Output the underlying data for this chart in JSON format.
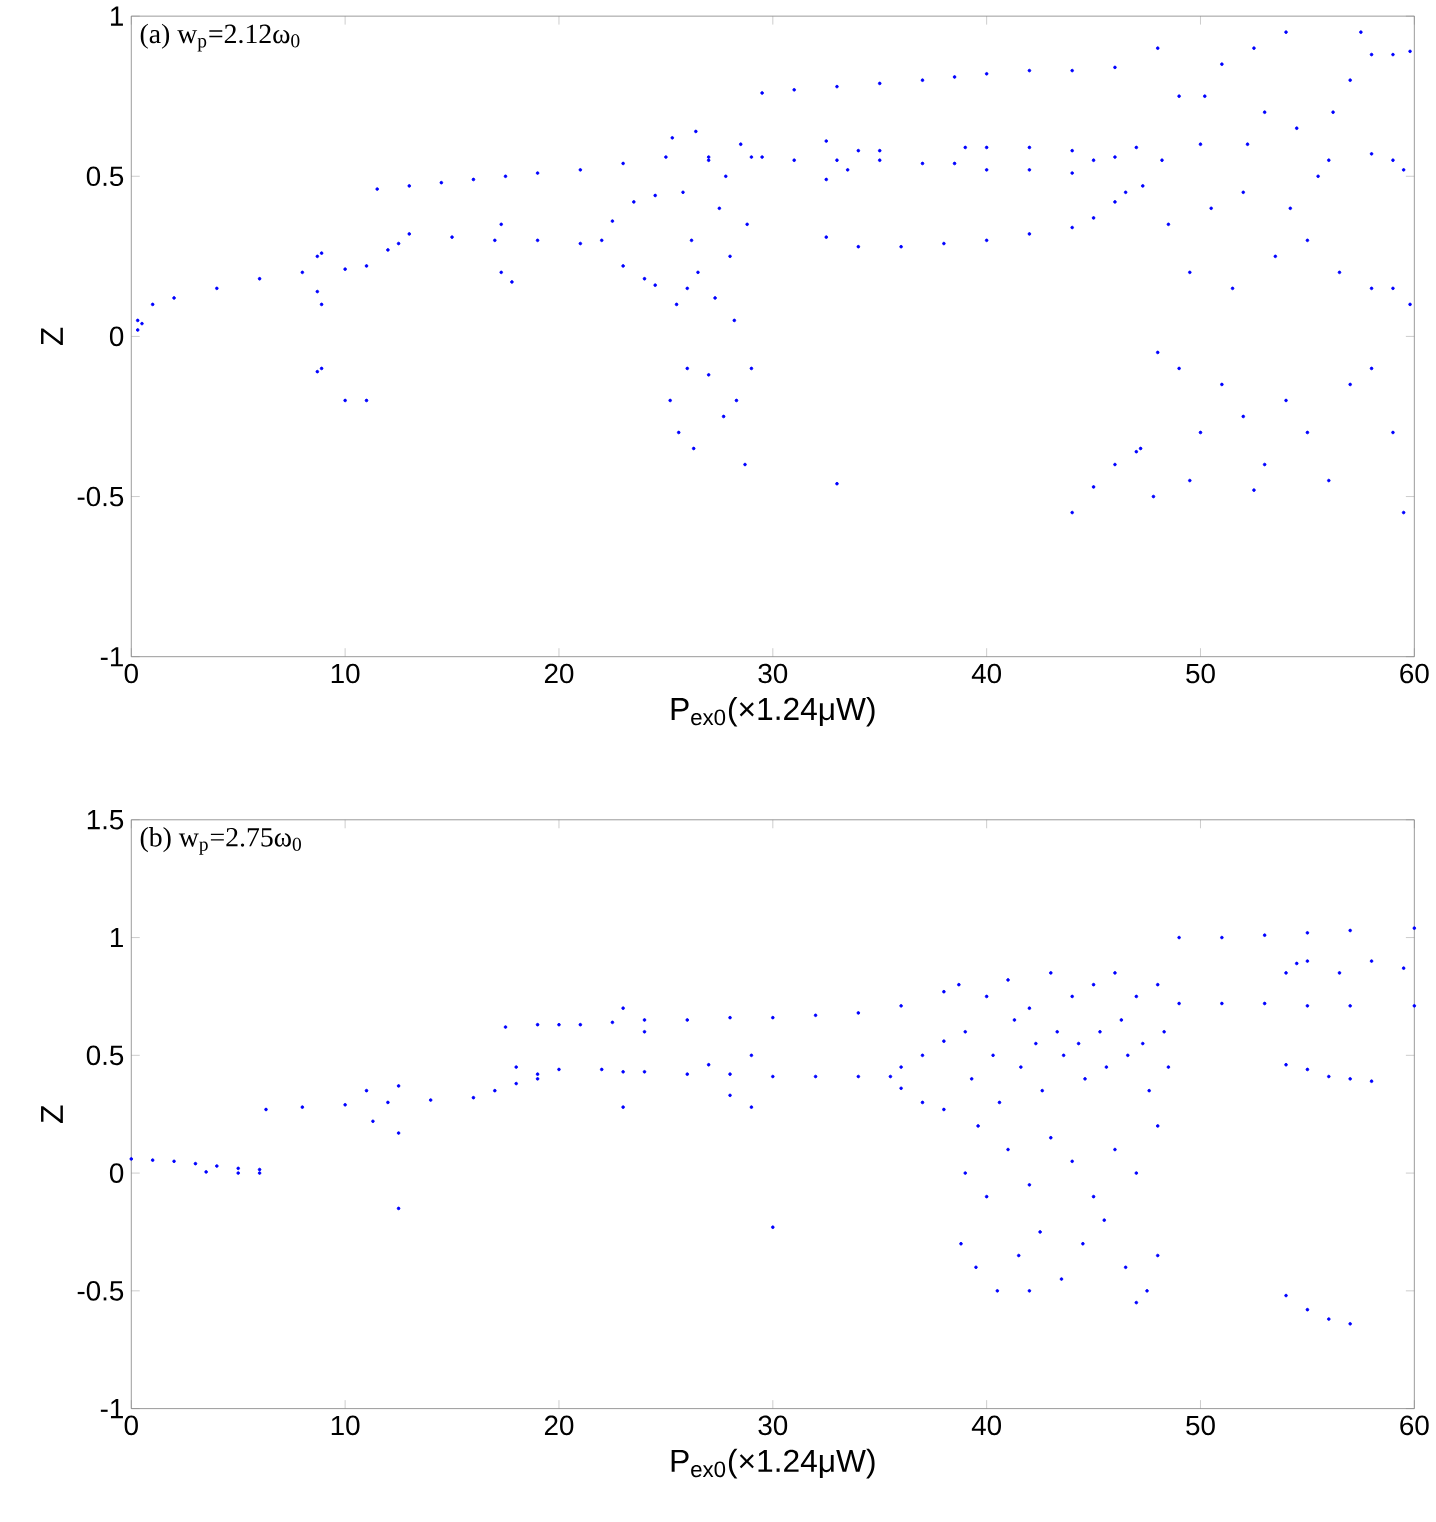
{
  "chart_data": [
    {
      "type": "scatter",
      "xlabel": "P$_{ex0}$(×1.24μW)",
      "ylabel": "Z",
      "annotations": [
        "(a) w$_{p}$=2.12ω$_{0}$"
      ],
      "marker": "circle",
      "xlim": [
        0,
        60
      ],
      "ylim": [
        -1,
        1
      ],
      "xticks": [
        0,
        10,
        20,
        30,
        40,
        50,
        60
      ],
      "yticks": [
        -1,
        -0.5,
        0,
        0.5,
        1
      ],
      "series": [
        {
          "color": "#0000ff",
          "x": [
            0.3,
            0.3,
            0.5,
            1,
            2,
            4,
            6,
            8,
            10,
            11,
            8.7,
            8.9,
            8.7,
            8.9,
            8.7,
            8.9,
            10,
            11,
            11.5,
            13,
            14.5,
            16,
            17.5,
            19,
            21,
            23,
            25,
            27,
            29,
            12,
            12.5,
            13,
            15,
            17,
            19,
            21,
            22,
            22.5,
            23.5,
            24.5,
            23,
            24,
            24.5,
            17.3,
            17.8,
            17.3,
            25.3,
            25.8,
            26.2,
            26.5,
            27,
            27.5,
            28,
            28.5,
            28.8,
            25.5,
            26,
            27.3,
            28.2,
            26.4,
            27.8,
            25.2,
            25.6,
            26,
            26.3,
            27,
            27.7,
            28.3,
            28.7,
            29,
            29.5,
            31,
            33,
            35,
            37,
            38.5,
            40,
            42,
            44,
            46,
            29.5,
            31,
            33,
            35,
            37,
            38.5,
            32.5,
            34,
            35,
            32.5,
            33.5,
            39,
            40,
            42,
            44,
            45,
            46,
            47,
            40,
            42,
            44,
            32.5,
            34,
            36,
            38,
            40,
            42,
            44,
            45,
            46,
            46.5,
            47.3,
            33,
            44,
            45,
            46,
            47,
            47.2,
            48,
            49,
            50,
            51,
            52,
            53,
            54,
            55,
            56,
            57,
            48.5,
            49.5,
            50.5,
            51.5,
            52.5,
            53.5,
            54.5,
            55.5,
            56.5,
            57.5,
            48.2,
            50.2,
            52.2,
            54.2,
            56.2,
            58,
            59,
            59.8,
            58,
            59,
            59.5,
            58,
            59,
            59.8,
            48,
            49,
            50,
            51,
            52,
            53,
            54,
            55,
            56,
            57,
            58,
            59,
            59.5,
            47.8,
            49.5,
            52.5
          ],
          "values": [
            0.05,
            0.02,
            0.04,
            0.1,
            0.12,
            0.15,
            0.18,
            0.2,
            0.21,
            0.22,
            0.25,
            0.26,
            0.14,
            0.1,
            -0.11,
            -0.1,
            -0.2,
            -0.2,
            0.46,
            0.47,
            0.48,
            0.49,
            0.5,
            0.51,
            0.52,
            0.54,
            0.56,
            0.56,
            0.56,
            0.27,
            0.29,
            0.32,
            0.31,
            0.3,
            0.3,
            0.29,
            0.3,
            0.36,
            0.42,
            0.44,
            0.22,
            0.18,
            0.16,
            0.2,
            0.17,
            0.35,
            0.62,
            0.45,
            0.3,
            0.2,
            0.55,
            0.4,
            0.25,
            0.6,
            0.35,
            0.1,
            0.15,
            0.12,
            0.05,
            0.64,
            0.5,
            -0.2,
            -0.3,
            -0.1,
            -0.35,
            -0.12,
            -0.25,
            -0.2,
            -0.4,
            -0.1,
            0.76,
            0.77,
            0.78,
            0.79,
            0.8,
            0.81,
            0.82,
            0.83,
            0.83,
            0.84,
            0.56,
            0.55,
            0.55,
            0.55,
            0.54,
            0.54,
            0.61,
            0.58,
            0.58,
            0.49,
            0.52,
            0.59,
            0.59,
            0.59,
            0.58,
            0.55,
            0.56,
            0.59,
            0.52,
            0.52,
            0.51,
            0.31,
            0.28,
            0.28,
            0.29,
            0.3,
            0.32,
            0.34,
            0.37,
            0.42,
            0.45,
            0.47,
            -0.46,
            -0.55,
            -0.47,
            -0.4,
            -0.36,
            -0.35,
            0.9,
            0.75,
            0.6,
            0.85,
            0.45,
            0.7,
            0.95,
            0.3,
            0.55,
            0.8,
            0.35,
            0.2,
            0.4,
            0.15,
            0.9,
            0.25,
            0.65,
            0.5,
            0.2,
            0.95,
            0.55,
            0.75,
            0.6,
            0.4,
            0.7,
            0.88,
            0.88,
            0.89,
            0.57,
            0.55,
            0.52,
            0.15,
            0.15,
            0.1,
            -0.05,
            -0.1,
            -0.3,
            -0.15,
            -0.25,
            -0.4,
            -0.2,
            -0.3,
            -0.45,
            -0.15,
            -0.1,
            -0.3,
            -0.55,
            -0.5,
            -0.45,
            -0.48
          ]
        }
      ]
    },
    {
      "type": "scatter",
      "xlabel": "P$_{ex0}$(×1.24μW)",
      "ylabel": "Z",
      "annotations": [
        "(b) w$_{p}$=2.75ω$_{0}$"
      ],
      "marker": "circle",
      "xlim": [
        0,
        60
      ],
      "ylim": [
        -1,
        1.5
      ],
      "xticks": [
        0,
        10,
        20,
        30,
        40,
        50,
        60
      ],
      "yticks": [
        -1,
        -0.5,
        0,
        0.5,
        1,
        1.5
      ],
      "series": [
        {
          "color": "#0000ff",
          "x": [
            0,
            1,
            2,
            3,
            4,
            5,
            6,
            3.5,
            5,
            6,
            6.3,
            8,
            10,
            12,
            14,
            16,
            17,
            18,
            19,
            20,
            22,
            23,
            11,
            11.3,
            12.5,
            12.5,
            12.5,
            17.5,
            19,
            20,
            21,
            22.5,
            24,
            26,
            28,
            30,
            32,
            34,
            36,
            38,
            23,
            23,
            24,
            18,
            19,
            24,
            26,
            28,
            30,
            32,
            34,
            35.5,
            36,
            37,
            38,
            36,
            37,
            38,
            28,
            29,
            27,
            29,
            30,
            38.7,
            39,
            39.3,
            39.6,
            40,
            40.3,
            40.6,
            41,
            41.3,
            41.6,
            42,
            42.3,
            42.6,
            43,
            43.3,
            43.6,
            44,
            44.3,
            44.6,
            45,
            45.3,
            45.6,
            46,
            46.3,
            46.6,
            47,
            47.3,
            47.6,
            48,
            48.3,
            48.5,
            39,
            40,
            41,
            42,
            43,
            44,
            45,
            46,
            47,
            48,
            38.8,
            39.5,
            40.5,
            41.5,
            42.5,
            43.5,
            44.5,
            45.5,
            46.5,
            47.5,
            48,
            47,
            42,
            49,
            51,
            53,
            55,
            57,
            60,
            49,
            51,
            53,
            55,
            57,
            60,
            54,
            55,
            56,
            57,
            58,
            54,
            55,
            56,
            57,
            54.5,
            55,
            54,
            56.5,
            58,
            59.5
          ],
          "values": [
            0.06,
            0.055,
            0.05,
            0.04,
            0.03,
            0.02,
            0.015,
            0.005,
            0,
            0,
            0.27,
            0.28,
            0.29,
            0.3,
            0.31,
            0.32,
            0.35,
            0.38,
            0.42,
            0.44,
            0.44,
            0.43,
            0.35,
            0.22,
            0.37,
            0.17,
            -0.15,
            0.62,
            0.63,
            0.63,
            0.63,
            0.64,
            0.65,
            0.65,
            0.66,
            0.66,
            0.67,
            0.68,
            0.71,
            0.77,
            0.28,
            0.7,
            0.6,
            0.45,
            0.4,
            0.43,
            0.42,
            0.42,
            0.41,
            0.41,
            0.41,
            0.41,
            0.45,
            0.5,
            0.56,
            0.36,
            0.3,
            0.27,
            0.33,
            0.28,
            0.46,
            0.5,
            -0.23,
            0.8,
            0.6,
            0.4,
            0.2,
            0.75,
            0.5,
            0.3,
            0.82,
            0.65,
            0.45,
            0.7,
            0.55,
            0.35,
            0.85,
            0.6,
            0.5,
            0.75,
            0.55,
            0.4,
            0.8,
            0.6,
            0.45,
            0.85,
            0.65,
            0.5,
            0.75,
            0.55,
            0.35,
            0.8,
            0.6,
            0.45,
            0,
            -0.1,
            0.1,
            -0.05,
            0.15,
            0.05,
            -0.1,
            0.1,
            0,
            0.2,
            -0.3,
            -0.4,
            -0.5,
            -0.35,
            -0.25,
            -0.45,
            -0.3,
            -0.2,
            -0.4,
            -0.5,
            -0.35,
            -0.55,
            -0.5,
            1,
            1,
            1.01,
            1.02,
            1.03,
            1.04,
            0.72,
            0.72,
            0.72,
            0.71,
            0.71,
            0.71,
            0.46,
            0.44,
            0.41,
            0.4,
            0.39,
            -0.52,
            -0.58,
            -0.62,
            -0.64,
            0.89,
            0.9,
            0.85,
            0.85,
            0.9,
            0.87
          ]
        }
      ]
    }
  ]
}
